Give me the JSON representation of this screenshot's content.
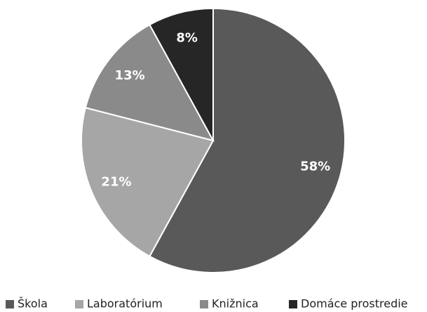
{
  "chart_data": {
    "type": "pie",
    "categories": [
      "Škola",
      "Laboratórium",
      "Knižnica",
      "Domáce prostredie"
    ],
    "values": [
      58,
      21,
      13,
      8
    ],
    "value_labels": [
      "58%",
      "21%",
      "13%",
      "8%"
    ],
    "colors": [
      "#595959",
      "#a6a6a6",
      "#8a8a8a",
      "#262626"
    ],
    "legend": "bottom"
  }
}
